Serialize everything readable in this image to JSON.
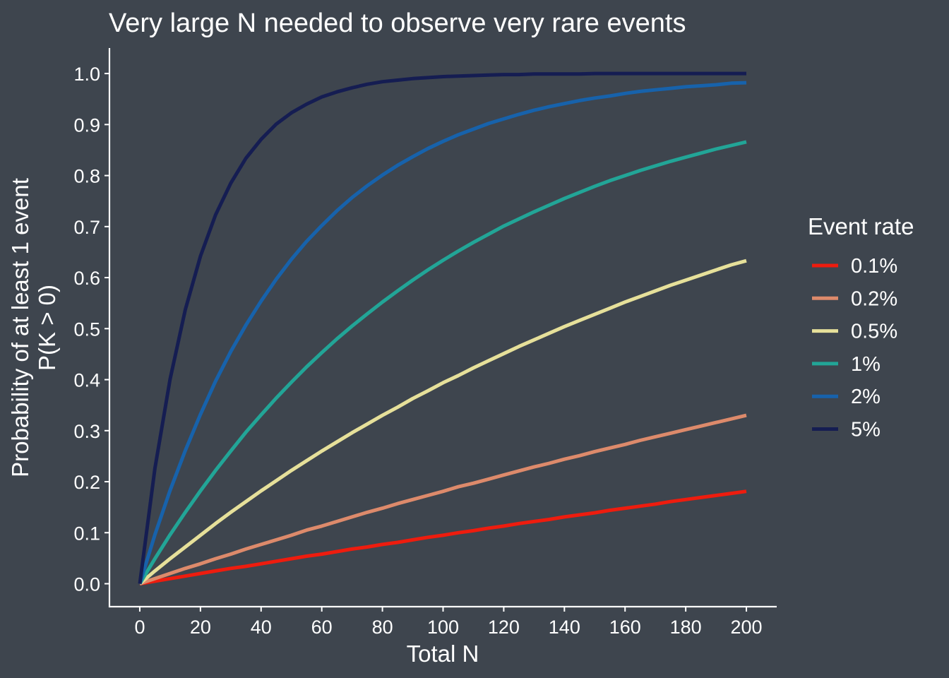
{
  "chart_data": {
    "type": "line",
    "title": "Very large N needed to observe very rare events",
    "xlabel": "Total N",
    "ylabel_lines": [
      "Probability of at least 1 event",
      "P(K > 0)"
    ],
    "xlim": [
      -10,
      210
    ],
    "ylim": [
      -0.045,
      1.05
    ],
    "x_ticks": [
      0,
      20,
      40,
      60,
      80,
      100,
      120,
      140,
      160,
      180,
      200
    ],
    "y_ticks": [
      0.0,
      0.1,
      0.2,
      0.3,
      0.4,
      0.5,
      0.6,
      0.7,
      0.8,
      0.9,
      1.0
    ],
    "y_tick_labels": [
      "0.0",
      "0.1",
      "0.2",
      "0.3",
      "0.4",
      "0.5",
      "0.6",
      "0.7",
      "0.8",
      "0.9",
      "1.0"
    ],
    "x": [
      0,
      5,
      10,
      15,
      20,
      25,
      30,
      35,
      40,
      45,
      50,
      55,
      60,
      65,
      70,
      75,
      80,
      85,
      90,
      95,
      100,
      105,
      110,
      115,
      120,
      125,
      130,
      135,
      140,
      145,
      150,
      155,
      160,
      165,
      170,
      175,
      180,
      185,
      190,
      195,
      200
    ],
    "legend": {
      "title": "Event rate",
      "position": "right"
    },
    "grid": false,
    "series": [
      {
        "name": "0.1%",
        "color": "#ee1c0e",
        "values": [
          0,
          0.005,
          0.01,
          0.015,
          0.02,
          0.025,
          0.03,
          0.034,
          0.039,
          0.044,
          0.049,
          0.054,
          0.058,
          0.063,
          0.068,
          0.072,
          0.077,
          0.081,
          0.086,
          0.091,
          0.095,
          0.1,
          0.104,
          0.109,
          0.113,
          0.118,
          0.122,
          0.126,
          0.131,
          0.135,
          0.139,
          0.144,
          0.148,
          0.152,
          0.156,
          0.161,
          0.165,
          0.169,
          0.173,
          0.177,
          0.181
        ]
      },
      {
        "name": "0.2%",
        "color": "#dd8a6b",
        "values": [
          0,
          0.01,
          0.02,
          0.03,
          0.039,
          0.049,
          0.058,
          0.068,
          0.077,
          0.086,
          0.095,
          0.105,
          0.113,
          0.122,
          0.131,
          0.14,
          0.148,
          0.157,
          0.165,
          0.173,
          0.181,
          0.19,
          0.197,
          0.205,
          0.213,
          0.221,
          0.229,
          0.236,
          0.244,
          0.251,
          0.259,
          0.266,
          0.273,
          0.281,
          0.288,
          0.295,
          0.302,
          0.309,
          0.316,
          0.323,
          0.33
        ]
      },
      {
        "name": "0.5%",
        "color": "#e6e09a",
        "values": [
          0,
          0.025,
          0.049,
          0.072,
          0.095,
          0.118,
          0.14,
          0.161,
          0.182,
          0.202,
          0.222,
          0.241,
          0.26,
          0.278,
          0.296,
          0.313,
          0.33,
          0.346,
          0.363,
          0.378,
          0.394,
          0.408,
          0.423,
          0.437,
          0.451,
          0.465,
          0.478,
          0.491,
          0.504,
          0.516,
          0.528,
          0.54,
          0.552,
          0.563,
          0.574,
          0.585,
          0.595,
          0.605,
          0.615,
          0.625,
          0.633
        ]
      },
      {
        "name": "1%",
        "color": "#22a597",
        "values": [
          0,
          0.049,
          0.096,
          0.14,
          0.182,
          0.222,
          0.26,
          0.297,
          0.331,
          0.364,
          0.395,
          0.425,
          0.453,
          0.48,
          0.505,
          0.529,
          0.552,
          0.574,
          0.595,
          0.615,
          0.634,
          0.652,
          0.669,
          0.685,
          0.701,
          0.715,
          0.729,
          0.742,
          0.755,
          0.767,
          0.779,
          0.79,
          0.8,
          0.81,
          0.819,
          0.828,
          0.836,
          0.844,
          0.852,
          0.859,
          0.866
        ]
      },
      {
        "name": "2%",
        "color": "#1762ab",
        "values": [
          0,
          0.096,
          0.183,
          0.261,
          0.332,
          0.397,
          0.455,
          0.507,
          0.554,
          0.597,
          0.636,
          0.671,
          0.702,
          0.731,
          0.757,
          0.78,
          0.801,
          0.82,
          0.837,
          0.853,
          0.867,
          0.88,
          0.891,
          0.902,
          0.911,
          0.92,
          0.928,
          0.935,
          0.941,
          0.947,
          0.952,
          0.956,
          0.961,
          0.965,
          0.968,
          0.971,
          0.974,
          0.976,
          0.978,
          0.981,
          0.982
        ]
      },
      {
        "name": "5%",
        "color": "#151d52",
        "values": [
          0,
          0.226,
          0.401,
          0.537,
          0.642,
          0.723,
          0.785,
          0.834,
          0.871,
          0.901,
          0.923,
          0.94,
          0.954,
          0.964,
          0.972,
          0.979,
          0.984,
          0.987,
          0.99,
          0.992,
          0.994,
          0.995,
          0.996,
          0.997,
          0.998,
          0.998,
          0.999,
          0.999,
          0.999,
          0.999,
          1.0,
          1.0,
          1.0,
          1.0,
          1.0,
          1.0,
          1.0,
          1.0,
          1.0,
          1.0,
          1.0
        ]
      }
    ]
  },
  "colors": {
    "background": "#3e454e",
    "axis": "#ffffff",
    "text": "#ffffff"
  }
}
